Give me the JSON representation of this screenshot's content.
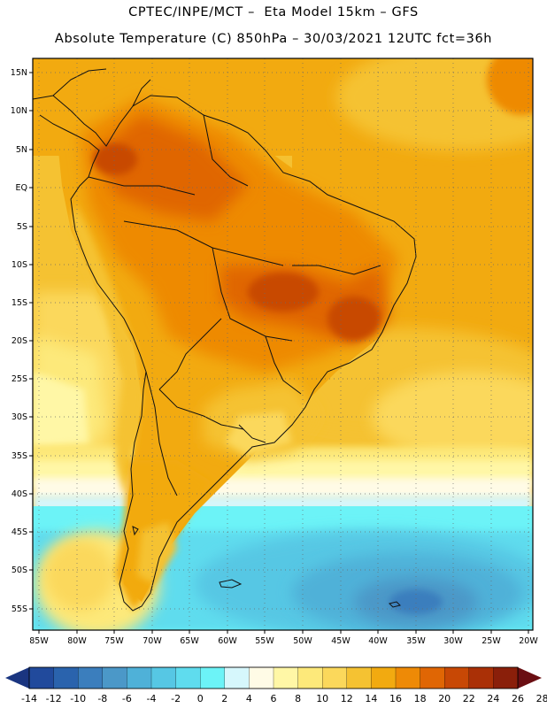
{
  "title": {
    "line1": "CPTEC/INPE/MCT –  Eta Model 15km – GFS",
    "line2": "Absolute Temperature (C) 850hPa – 30/03/2021 12UTC fct=36h"
  },
  "axes": {
    "latitudes": [
      "15N",
      "10N",
      "5N",
      "EQ",
      "5S",
      "10S",
      "15S",
      "20S",
      "25S",
      "30S",
      "35S",
      "40S",
      "45S",
      "50S",
      "55S"
    ],
    "longitudes": [
      "85W",
      "80W",
      "75W",
      "70W",
      "65W",
      "60W",
      "55W",
      "50W",
      "45W",
      "40W",
      "35W",
      "30W",
      "25W",
      "20W"
    ]
  },
  "colorbar": {
    "labels": [
      "-14",
      "-12",
      "-10",
      "-8",
      "-6",
      "-4",
      "-2",
      "0",
      "2",
      "4",
      "6",
      "8",
      "10",
      "12",
      "14",
      "16",
      "18",
      "20",
      "22",
      "24",
      "26",
      "28"
    ],
    "colors": [
      "#1a3580",
      "#214a9c",
      "#2a63ad",
      "#3b7ebd",
      "#4b98c8",
      "#4fb1d8",
      "#56c7e4",
      "#5fdcee",
      "#6cf3f7",
      "#d6f7fc",
      "#fffbe6",
      "#fff7a6",
      "#fde97a",
      "#fbd85b",
      "#f5c232",
      "#f2aa10",
      "#ee8a06",
      "#e06604",
      "#c84805",
      "#aa3006",
      "#8a1f0a",
      "#6a0e12"
    ]
  }
}
